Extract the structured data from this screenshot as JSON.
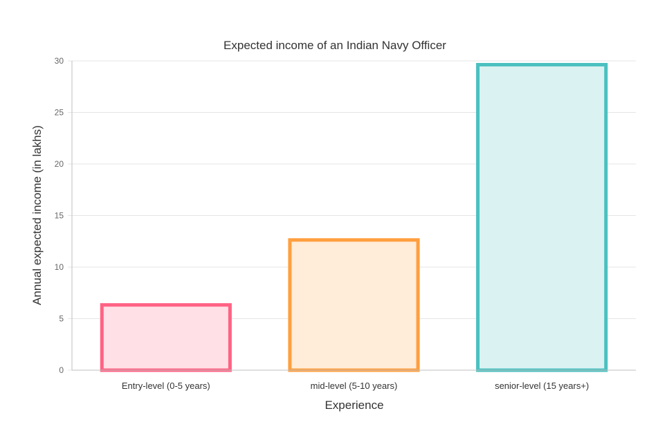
{
  "chart_data": {
    "type": "bar",
    "title": "Expected income of an Indian Navy Officer",
    "xlabel": "Experience",
    "ylabel": "Annual expected income (in lakhs)",
    "categories": [
      "Entry-level (0-5 years)",
      "mid-level (5-10 years)",
      "senior-level (15 years+)"
    ],
    "values": [
      6.5,
      12.8,
      29.8
    ],
    "ylim": [
      0,
      30
    ],
    "yticks": [
      "0",
      "5",
      "10",
      "15",
      "20",
      "25",
      "30"
    ],
    "grid": true,
    "legend": "none",
    "colors": {
      "borders": [
        "#ff6384",
        "#ff9f40",
        "#4bc0c0"
      ],
      "fills": [
        "#ffe0e6",
        "#ffecd9",
        "#dbf2f2"
      ],
      "grid": "#e5e5e5",
      "axis": "#bfbfbf",
      "text": "#666666",
      "title": "#333333"
    }
  }
}
